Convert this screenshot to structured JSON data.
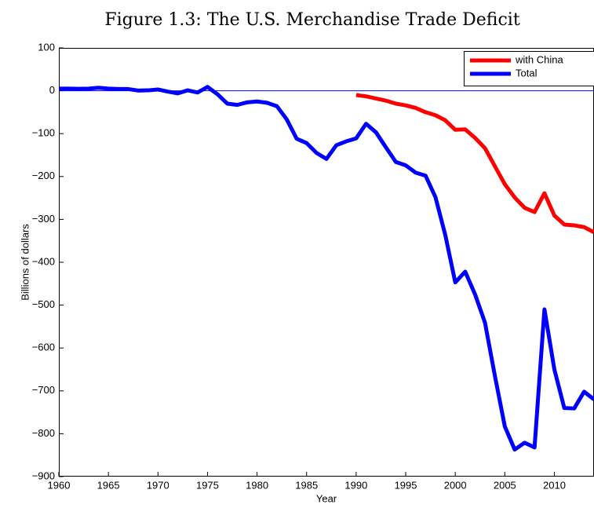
{
  "chart_data": {
    "type": "line",
    "title": "Figure 1.3: The U.S. Merchandise Trade Deficit",
    "x_label": "Year",
    "y_label": "Billions of dollars",
    "xlim": [
      1960,
      2014
    ],
    "xticks": [
      1960,
      1965,
      1970,
      1975,
      1980,
      1985,
      1990,
      1995,
      2000,
      2005,
      2010
    ],
    "ylim": [
      -900,
      100
    ],
    "yticks": [
      {
        "value": -900,
        "label": "−900"
      },
      {
        "value": -800,
        "label": "−800"
      },
      {
        "value": -700,
        "label": "−700"
      },
      {
        "value": -600,
        "label": "−600"
      },
      {
        "value": -500,
        "label": "−500"
      },
      {
        "value": -400,
        "label": "−400"
      },
      {
        "value": -300,
        "label": "−300"
      },
      {
        "value": -200,
        "label": "−200"
      },
      {
        "value": -100,
        "label": "−100"
      },
      0,
      100
    ],
    "zero_line": true,
    "legend": "upper right",
    "series": [
      {
        "name": "with China",
        "color": "#ff0000",
        "x": [
          1990,
          1991,
          1992,
          1993,
          1994,
          1995,
          1996,
          1997,
          1998,
          1999,
          2000,
          2001,
          2002,
          2003,
          2004,
          2005,
          2006,
          2007,
          2008,
          2009,
          2010,
          2011,
          2012,
          2013,
          2014
        ],
        "values": [
          -10,
          -13,
          -18,
          -23,
          -30,
          -34,
          -40,
          -50,
          -57,
          -69,
          -91,
          -90,
          -110,
          -134,
          -176,
          -218,
          -249,
          -273,
          -283,
          -239,
          -291,
          -312,
          -314,
          -318,
          -330
        ]
      },
      {
        "name": "Total",
        "color": "#0000ff",
        "x": [
          1960,
          1961,
          1962,
          1963,
          1964,
          1965,
          1966,
          1967,
          1968,
          1969,
          1970,
          1971,
          1972,
          1973,
          1974,
          1975,
          1976,
          1977,
          1978,
          1979,
          1980,
          1981,
          1982,
          1983,
          1984,
          1985,
          1986,
          1987,
          1988,
          1989,
          1990,
          1991,
          1992,
          1993,
          1994,
          1995,
          1996,
          1997,
          1998,
          1999,
          2000,
          2001,
          2002,
          2003,
          2004,
          2005,
          2006,
          2007,
          2008,
          2009,
          2010,
          2011,
          2012,
          2013,
          2014
        ],
        "values": [
          5,
          5,
          4.5,
          5,
          7,
          5,
          4,
          4,
          0.5,
          1,
          3,
          -2,
          -6,
          1,
          -4,
          9,
          -8,
          -30,
          -33,
          -27,
          -25,
          -28,
          -36,
          -67,
          -112,
          -122,
          -145,
          -159,
          -127,
          -118,
          -111,
          -77,
          -97,
          -132,
          -166,
          -174,
          -191,
          -198,
          -248,
          -337,
          -447,
          -422,
          -475,
          -541,
          -665,
          -783,
          -837,
          -821,
          -832,
          -510,
          -650,
          -740,
          -741,
          -702,
          -720
        ]
      }
    ]
  }
}
